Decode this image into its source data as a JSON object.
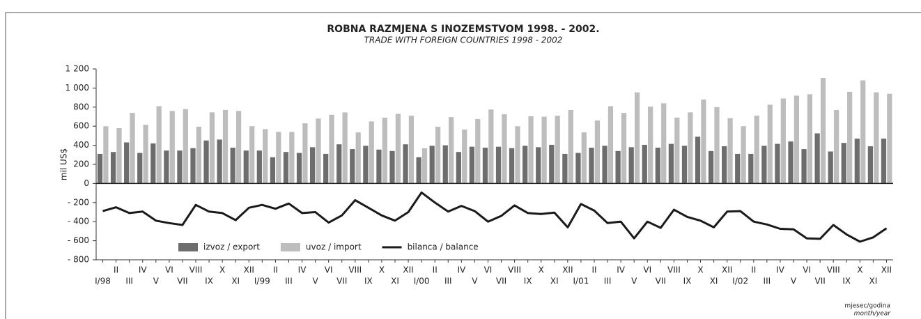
{
  "chart_data": {
    "type": "bar-line",
    "title": "ROBNA RAZMJENA S INOZEMSTVOM 1998. - 2002.",
    "subtitle": "TRADE WITH FOREIGN COUNTRIES 1998 - 2002",
    "y_label": "mil US$",
    "x_label": "mjesec/godina",
    "x_label_en": "month/year",
    "legend": "bottom-left",
    "categories": [
      "I/98",
      "II",
      "III",
      "IV",
      "V",
      "VI",
      "VII",
      "VIII",
      "IX",
      "X",
      "XI",
      "XII",
      "I/99",
      "II",
      "III",
      "IV",
      "V",
      "VI",
      "VII",
      "VIII",
      "IX",
      "X",
      "XI",
      "XII",
      "I/00",
      "II",
      "III",
      "IV",
      "V",
      "VI",
      "VII",
      "VIII",
      "IX",
      "X",
      "XI",
      "XII",
      "I/01",
      "II",
      "III",
      "IV",
      "V",
      "VI",
      "VII",
      "VIII",
      "IX",
      "X",
      "XI",
      "XII",
      "I/02",
      "II",
      "III",
      "IV",
      "V",
      "VI",
      "VII",
      "VIII",
      "IX",
      "X",
      "XI",
      "XII"
    ],
    "ylim": [
      -800,
      1200
    ],
    "yticks": [
      {
        "value": -800,
        "label": "- 800"
      },
      {
        "value": -600,
        "label": "- 600"
      },
      {
        "value": -400,
        "label": "- 400"
      },
      {
        "value": -200,
        "label": "- 200"
      },
      0,
      200,
      400,
      600,
      800,
      {
        "value": 1000,
        "label": "1 000"
      },
      {
        "value": 1200,
        "label": "1 200"
      }
    ],
    "series": [
      {
        "name": "izvoz / export",
        "kind": "bar",
        "color": "#6d6d6d",
        "values": [
          310,
          330,
          430,
          320,
          420,
          345,
          345,
          370,
          450,
          460,
          375,
          345,
          345,
          275,
          330,
          320,
          380,
          310,
          410,
          360,
          395,
          355,
          340,
          410,
          275,
          395,
          400,
          330,
          385,
          375,
          385,
          370,
          395,
          380,
          405,
          310,
          320,
          375,
          395,
          340,
          380,
          405,
          375,
          415,
          395,
          490,
          340,
          390,
          310,
          310,
          395,
          415,
          440,
          360,
          525,
          335,
          425,
          470,
          390,
          470
        ]
      },
      {
        "name": "uvoz / import",
        "kind": "bar",
        "color": "#bdbdbd",
        "values": [
          600,
          580,
          740,
          615,
          810,
          760,
          780,
          595,
          745,
          770,
          760,
          600,
          570,
          540,
          540,
          630,
          680,
          720,
          745,
          535,
          650,
          690,
          730,
          710,
          370,
          595,
          695,
          565,
          675,
          775,
          725,
          600,
          705,
          700,
          710,
          770,
          535,
          660,
          810,
          740,
          955,
          805,
          840,
          690,
          745,
          880,
          800,
          685,
          600,
          710,
          825,
          890,
          920,
          935,
          1105,
          770,
          960,
          1080,
          955,
          940
        ]
      },
      {
        "name": "bilanca / balance",
        "kind": "line",
        "color": "#1a1a1a",
        "values": [
          -290,
          -250,
          -310,
          -295,
          -390,
          -415,
          -435,
          -225,
          -295,
          -310,
          -385,
          -255,
          -225,
          -265,
          -210,
          -310,
          -300,
          -410,
          -335,
          -175,
          -255,
          -335,
          -390,
          -300,
          -95,
          -200,
          -295,
          -235,
          -290,
          -400,
          -340,
          -230,
          -310,
          -320,
          -305,
          -460,
          -215,
          -285,
          -415,
          -400,
          -575,
          -400,
          -465,
          -275,
          -350,
          -390,
          -460,
          -295,
          -290,
          -400,
          -430,
          -475,
          -480,
          -575,
          -580,
          -435,
          -535,
          -610,
          -565,
          -470
        ]
      }
    ]
  }
}
